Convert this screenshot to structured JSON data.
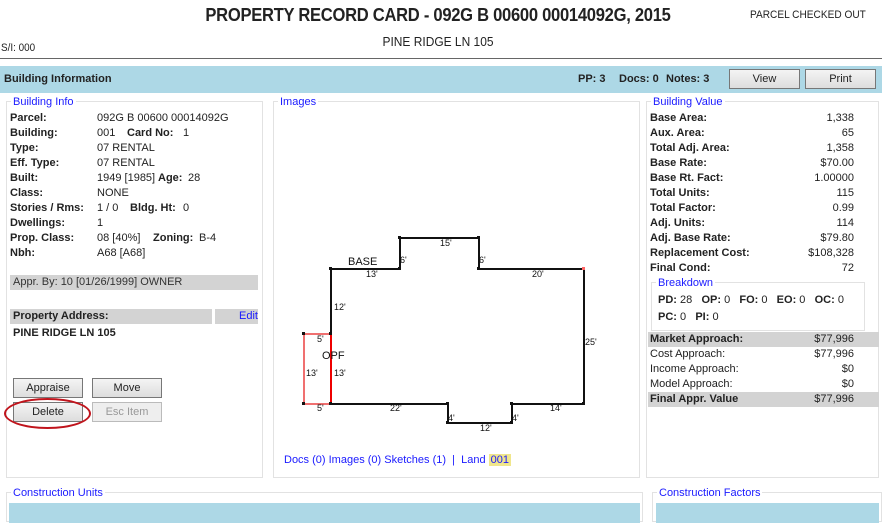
{
  "header": {
    "title": "PROPERTY RECORD CARD - 092G B 00600 00014092G, 2015",
    "status": "PARCEL CHECKED OUT",
    "address": "PINE RIDGE LN 105",
    "si": "S/I: 000"
  },
  "bar": {
    "title": "Building Information",
    "pp": "PP: 3",
    "docs": "Docs: 0",
    "notes": "Notes: 3",
    "view": "View",
    "print": "Print",
    "color": "#add8e6"
  },
  "building_info": {
    "legend": "Building Info",
    "rows": [
      {
        "label": "Parcel:",
        "value": "092G B 00600 00014092G"
      },
      {
        "label": "Building:",
        "value": "001",
        "label2": "Card No:",
        "value2": "1"
      },
      {
        "label": "Type:",
        "value": "07 RENTAL"
      },
      {
        "label": "Eff. Type:",
        "value": "07 RENTAL"
      },
      {
        "label": "Built:",
        "value": "1949 [1985]",
        "label2": "Age:",
        "value2": "28"
      },
      {
        "label": "Class:",
        "value": "NONE"
      },
      {
        "label": "Stories / Rms:",
        "value": "1 / 0",
        "label2": "Bldg. Ht:",
        "value2": "0"
      },
      {
        "label": "Dwellings:",
        "value": "1"
      },
      {
        "label": "Prop. Class:",
        "value": "08  [40%]",
        "label2": "Zoning:",
        "value2": "B-4"
      },
      {
        "label": "Nbh:",
        "value": "A68  [A68]"
      }
    ],
    "appr_by": "Appr. By:  10  [01/26/1999]  OWNER",
    "prop_addr_label": "Property Address:",
    "edit": "Edit",
    "prop_addr": "PINE RIDGE LN 105",
    "buttons": {
      "appraise": "Appraise",
      "move": "Move",
      "delete": "Delete",
      "esc": "Esc Item"
    }
  },
  "images": {
    "legend": "Images",
    "sketch": {
      "labels": [
        "BASE",
        "13'",
        "6'",
        "15'",
        "6'",
        "20'",
        "12'",
        "25'",
        "5'",
        "OPF",
        "13'",
        "13'",
        "5'",
        "22'",
        "4'",
        "12'",
        "4'",
        "14'"
      ]
    },
    "links": {
      "docs": "Docs (0)",
      "images": "Images (0)",
      "sketches": "Sketches (1)",
      "sep": "|",
      "land": "Land",
      "land_num": "001"
    }
  },
  "building_value": {
    "legend": "Building Value",
    "rows": [
      {
        "label": "Base Area:",
        "value": "1,338"
      },
      {
        "label": "Aux. Area:",
        "value": "65"
      },
      {
        "label": "Total Adj. Area:",
        "value": "1,358"
      },
      {
        "label": "Base Rate:",
        "value": "$70.00"
      },
      {
        "label": "Base Rt. Fact:",
        "value": "1.00000"
      },
      {
        "label": "Total Units:",
        "value": "115"
      },
      {
        "label": "Total Factor:",
        "value": "0.99"
      },
      {
        "label": "Adj. Units:",
        "value": "114"
      },
      {
        "label": "Adj. Base Rate:",
        "value": "$79.80"
      },
      {
        "label": "Replacement Cost:",
        "value": "$108,328"
      },
      {
        "label": "Final Cond:",
        "value": "72"
      }
    ],
    "breakdown": {
      "legend": "Breakdown",
      "line1": [
        [
          "PD:",
          "28"
        ],
        [
          "OP:",
          "0"
        ],
        [
          "FO:",
          "0"
        ],
        [
          "EO:",
          "0"
        ],
        [
          "OC:",
          "0"
        ]
      ],
      "line2": [
        [
          "PC:",
          "0"
        ],
        [
          "PI:",
          "0"
        ]
      ]
    },
    "approaches": [
      {
        "label": "Market Approach:",
        "value": "$77,996",
        "bold": true
      },
      {
        "label": "Cost Approach:",
        "value": "$77,996"
      },
      {
        "label": "Income Approach:",
        "value": "$0"
      },
      {
        "label": "Model Approach:",
        "value": "$0"
      },
      {
        "label": "Final Appr. Value",
        "value": "$77,996",
        "bold": true
      }
    ]
  },
  "bottom": {
    "units": "Construction Units",
    "factors": "Construction Factors"
  }
}
